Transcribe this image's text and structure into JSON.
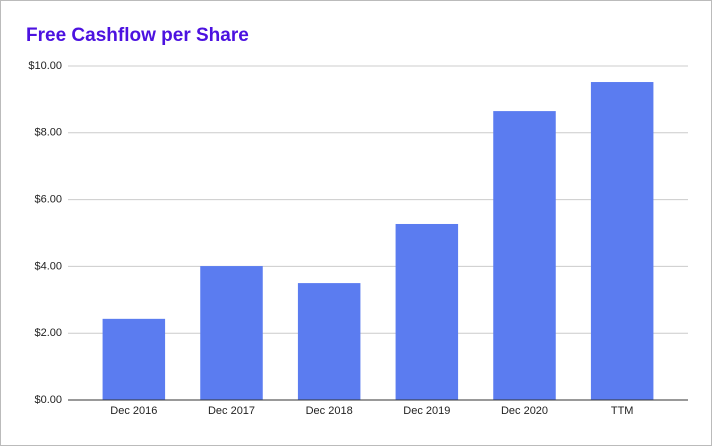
{
  "chart_data": {
    "type": "bar",
    "title": "Free Cashflow per Share",
    "categories": [
      "Dec 2016",
      "Dec 2017",
      "Dec 2018",
      "Dec 2019",
      "Dec 2020",
      "TTM"
    ],
    "values": [
      2.43,
      4.01,
      3.5,
      5.27,
      8.65,
      9.52
    ],
    "color": "#5b7cf0",
    "ylim": [
      0,
      10
    ],
    "yticks": [
      {
        "value": 0,
        "label": "$0.00"
      },
      {
        "value": 2,
        "label": "$2.00"
      },
      {
        "value": 4,
        "label": "$4.00"
      },
      {
        "value": 6,
        "label": "$6.00"
      },
      {
        "value": 8,
        "label": "$8.00"
      },
      {
        "value": 10,
        "label": "$10.00"
      }
    ],
    "grid": true
  }
}
